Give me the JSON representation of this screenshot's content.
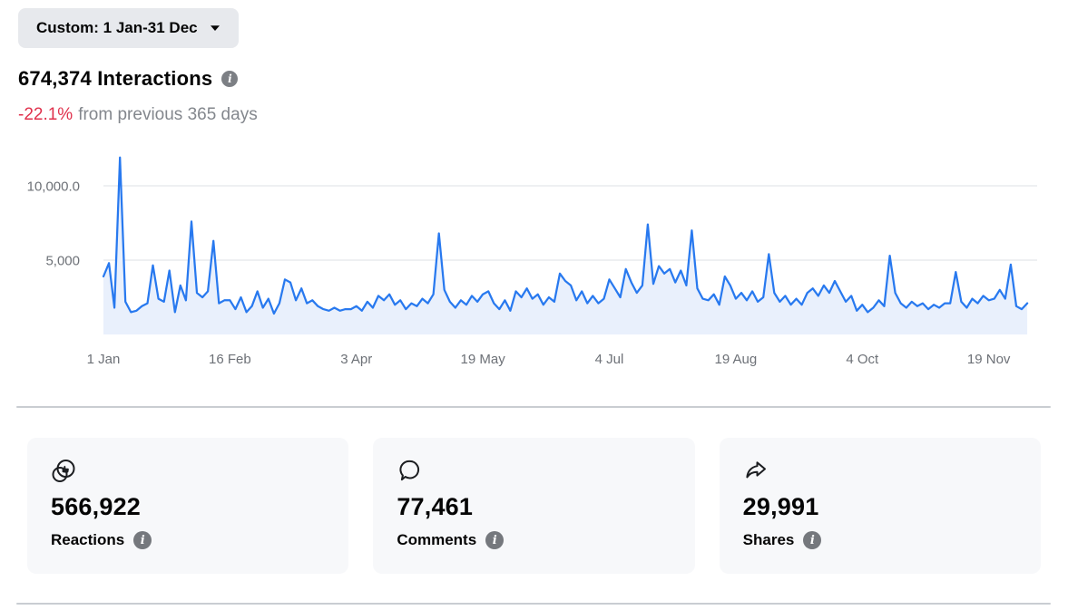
{
  "date_range": {
    "label": "Custom: 1 Jan-31 Dec"
  },
  "header": {
    "title": "674,374 Interactions",
    "change": {
      "value": "-22.1%",
      "suffix": "from previous 365 days"
    }
  },
  "colors": {
    "negative_change": "#e0314c",
    "pill_background": "#e7e9ed",
    "card_background": "#f7f8fa",
    "text_primary": "#050505",
    "text_secondary": "#83878d"
  },
  "chart_data": {
    "type": "area",
    "description": "Daily interactions, 1 Jan through early Dec",
    "line_color": "#2879ef",
    "fill_color": "#e9f0fc",
    "grid_color": "#e4e6e9",
    "axis_label_color": "#6d7177",
    "grid": true,
    "legend": "none",
    "ylim": [
      0,
      12200
    ],
    "y_ticks": [
      {
        "value": 5000,
        "label": "5,000"
      },
      {
        "value": 10000,
        "label": "10,000.0"
      }
    ],
    "x_ticks": [
      {
        "day": 0,
        "label": "1 Jan"
      },
      {
        "day": 46,
        "label": "16 Feb"
      },
      {
        "day": 92,
        "label": "3 Apr"
      },
      {
        "day": 138,
        "label": "19 May"
      },
      {
        "day": 184,
        "label": "4 Jul"
      },
      {
        "day": 230,
        "label": "19 Aug"
      },
      {
        "day": 276,
        "label": "4 Oct"
      },
      {
        "day": 322,
        "label": "19 Nov"
      }
    ],
    "start_day": 0,
    "sample_interval_days": 2,
    "values": [
      3900,
      4800,
      1800,
      11900,
      2200,
      1500,
      1600,
      1900,
      2100,
      4650,
      2400,
      2200,
      4300,
      1500,
      3300,
      2300,
      7600,
      2800,
      2500,
      2900,
      6300,
      2100,
      2300,
      2300,
      1700,
      2500,
      1500,
      1900,
      2900,
      1800,
      2400,
      1400,
      2100,
      3700,
      3500,
      2300,
      3100,
      2100,
      2300,
      1900,
      1700,
      1600,
      1800,
      1600,
      1700,
      1700,
      1900,
      1600,
      2200,
      1800,
      2600,
      2300,
      2700,
      2000,
      2300,
      1700,
      2100,
      1900,
      2400,
      2100,
      2700,
      6800,
      3000,
      2200,
      1800,
      2300,
      2000,
      2600,
      2200,
      2700,
      2900,
      2100,
      1700,
      2300,
      1600,
      2900,
      2500,
      3100,
      2400,
      2700,
      2000,
      2500,
      2200,
      4100,
      3600,
      3300,
      2300,
      2900,
      2100,
      2600,
      2100,
      2400,
      3700,
      3100,
      2500,
      4400,
      3500,
      2800,
      3300,
      7400,
      3400,
      4600,
      4100,
      4400,
      3500,
      4300,
      3300,
      7000,
      3100,
      2400,
      2300,
      2700,
      2000,
      3900,
      3300,
      2400,
      2800,
      2300,
      2900,
      2200,
      2500,
      5400,
      2800,
      2200,
      2600,
      2000,
      2400,
      2000,
      2800,
      3100,
      2600,
      3300,
      2800,
      3600,
      2900,
      2200,
      2600,
      1600,
      2000,
      1500,
      1800,
      2300,
      1900,
      5300,
      2800,
      2100,
      1800,
      2200,
      1900,
      2100,
      1700,
      2000,
      1800,
      2100,
      2100,
      4200,
      2200,
      1800,
      2400,
      2100,
      2600,
      2300,
      2400,
      3000,
      2400,
      4700,
      1900,
      1700,
      2100
    ]
  },
  "cards": [
    {
      "icon": "reactions-icon",
      "value": "566,922",
      "label": "Reactions"
    },
    {
      "icon": "comments-icon",
      "value": "77,461",
      "label": "Comments"
    },
    {
      "icon": "shares-icon",
      "value": "29,991",
      "label": "Shares"
    }
  ]
}
